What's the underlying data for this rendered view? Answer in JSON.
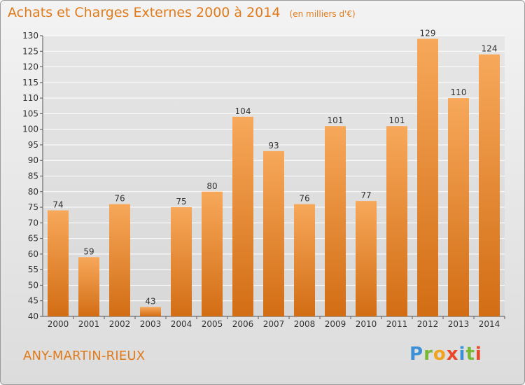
{
  "title": "Achats et Charges Externes 2000 à 2014",
  "subtitle": "(en milliers d'€)",
  "commune": "ANY-MARTIN-RIEUX",
  "logo": {
    "text": "Proxiti"
  },
  "colors": {
    "accent": "#e07b1c",
    "bar_light": "#f7a85a",
    "bar_dark": "#d26d14"
  },
  "chart_data": {
    "type": "bar",
    "title": "Achats et Charges Externes 2000 à 2014",
    "subtitle": "(en milliers d'€)",
    "categories": [
      "2000",
      "2001",
      "2002",
      "2003",
      "2004",
      "2005",
      "2006",
      "2007",
      "2008",
      "2009",
      "2010",
      "2011",
      "2012",
      "2013",
      "2014"
    ],
    "values": [
      74,
      59,
      76,
      43,
      75,
      80,
      104,
      93,
      76,
      101,
      77,
      101,
      129,
      110,
      124
    ],
    "ylim": [
      40,
      130
    ],
    "yticks": [
      40,
      45,
      50,
      55,
      60,
      65,
      70,
      75,
      80,
      85,
      90,
      95,
      100,
      105,
      110,
      115,
      120,
      125,
      130
    ],
    "grid": true,
    "legend": "none"
  }
}
